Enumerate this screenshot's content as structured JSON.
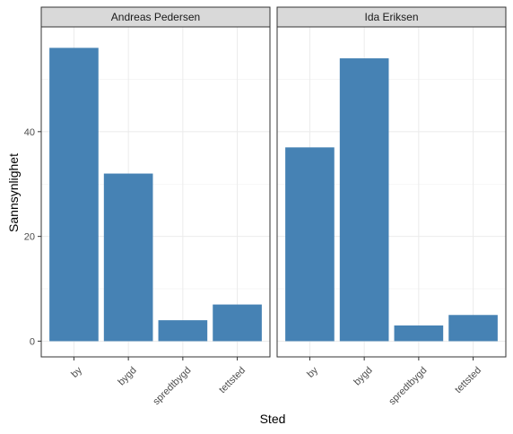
{
  "chart_data": {
    "type": "bar",
    "facet_by": "person",
    "xlabel": "Sted",
    "ylabel": "Sannsynlighet",
    "ylim": [
      -3,
      60
    ],
    "yticks": [
      0,
      20,
      40
    ],
    "grid": true,
    "bar_color": "#4682B4",
    "categories": [
      "by",
      "bygd",
      "spredtbygd",
      "tettsted"
    ],
    "panels": [
      {
        "name": "Andreas Pedersen",
        "values": [
          56,
          32,
          4,
          7
        ]
      },
      {
        "name": "Ida Eriksen",
        "values": [
          37,
          54,
          3,
          5
        ]
      }
    ]
  }
}
